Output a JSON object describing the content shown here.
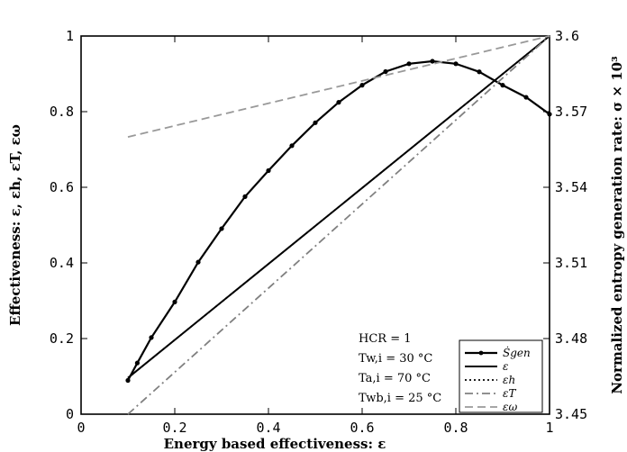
{
  "chart_data": {
    "type": "line",
    "xlabel": "Energy based effectiveness: ε",
    "ylabel_left": "Effectiveness: ε, εh, εT, εω",
    "ylabel_right": "Normalized entropy generation rate: σ × 10³",
    "xlim": [
      0,
      1
    ],
    "ylim_left": [
      0,
      1
    ],
    "ylim_right": [
      3.45,
      3.6
    ],
    "xticks": [
      "0",
      "0.2",
      "0.4",
      "0.6",
      "0.8",
      "1"
    ],
    "yticks_left": [
      "0",
      "0.2",
      "0.4",
      "0.6",
      "0.8",
      "1"
    ],
    "yticks_right": [
      "3.45",
      "3.48",
      "3.51",
      "3.54",
      "3.57",
      "3.6"
    ],
    "grid": false,
    "legend_position": "bottom-right",
    "annotations": {
      "hcr": "HCR = 1",
      "twi": "Tw,i = 30 °C",
      "tai": "Ta,i = 70 °C",
      "twbi": "Twb,i = 25 °C"
    },
    "series": [
      {
        "name": "Ṡgen",
        "axis": "right",
        "style": "solid-dots",
        "color": "#000000",
        "x": [
          0.1,
          0.12,
          0.15,
          0.2,
          0.25,
          0.3,
          0.35,
          0.4,
          0.45,
          0.5,
          0.55,
          0.6,
          0.65,
          0.7,
          0.75,
          0.8,
          0.85,
          0.9,
          0.95,
          1.0
        ],
        "y": [
          3.4634,
          3.4703,
          3.4804,
          3.4945,
          3.5103,
          3.5236,
          3.5363,
          3.5466,
          3.5565,
          3.5656,
          3.5737,
          3.5805,
          3.5859,
          3.589,
          3.59,
          3.589,
          3.5858,
          3.5805,
          3.5757,
          3.569
        ]
      },
      {
        "name": "ε",
        "axis": "left",
        "style": "solid",
        "color": "#000000",
        "x": [
          0.1,
          1.0
        ],
        "y": [
          0.096,
          1.0
        ]
      },
      {
        "name": "εh",
        "axis": "left",
        "style": "dotted",
        "color": "#000000",
        "x": [
          0.1,
          1.0
        ],
        "y": [
          0.096,
          1.0
        ]
      },
      {
        "name": "εT",
        "axis": "left",
        "style": "dashdot",
        "color": "#808080",
        "x": [
          0.1,
          1.0
        ],
        "y": [
          0.0,
          1.0
        ]
      },
      {
        "name": "εω",
        "axis": "left",
        "style": "dashed",
        "color": "#999999",
        "x": [
          0.1,
          1.0
        ],
        "y": [
          0.733,
          1.0
        ]
      }
    ]
  }
}
